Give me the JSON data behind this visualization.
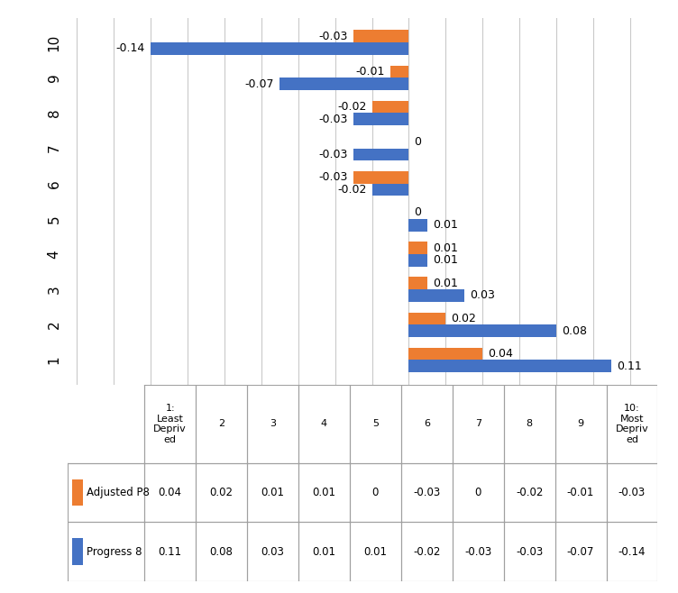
{
  "categories": [
    "1",
    "2",
    "3",
    "4",
    "5",
    "6",
    "7",
    "8",
    "9",
    "10"
  ],
  "adjusted_p8": [
    0.04,
    0.02,
    0.01,
    0.01,
    0,
    -0.03,
    0,
    -0.02,
    -0.01,
    -0.03
  ],
  "progress_8": [
    0.11,
    0.08,
    0.03,
    0.01,
    0.01,
    -0.02,
    -0.03,
    -0.03,
    -0.07,
    -0.14
  ],
  "bar_color_orange": "#ED7D31",
  "bar_color_blue": "#4472C4",
  "background_color": "#FFFFFF",
  "grid_color": "#C9C9C9",
  "xlim": [
    -0.185,
    0.135
  ],
  "bar_height": 0.35,
  "table_col_headers": [
    "1:\nLeast\nDepriv\ned",
    "2",
    "3",
    "4",
    "5",
    "6",
    "7",
    "8",
    "9",
    "10:\nMost\nDepriv\ned"
  ],
  "table_row1_label": "Adjusted P8",
  "table_row2_label": "Progress 8",
  "table_row1_values": [
    "0.04",
    "0.02",
    "0.01",
    "0.01",
    "0",
    "-0.03",
    "0",
    "-0.02",
    "-0.01",
    "-0.03"
  ],
  "table_row2_values": [
    "0.11",
    "0.08",
    "0.03",
    "0.01",
    "0.01",
    "-0.02",
    "-0.03",
    "-0.03",
    "-0.07",
    "-0.14"
  ],
  "label_fontsize": 9,
  "tick_fontsize": 11
}
